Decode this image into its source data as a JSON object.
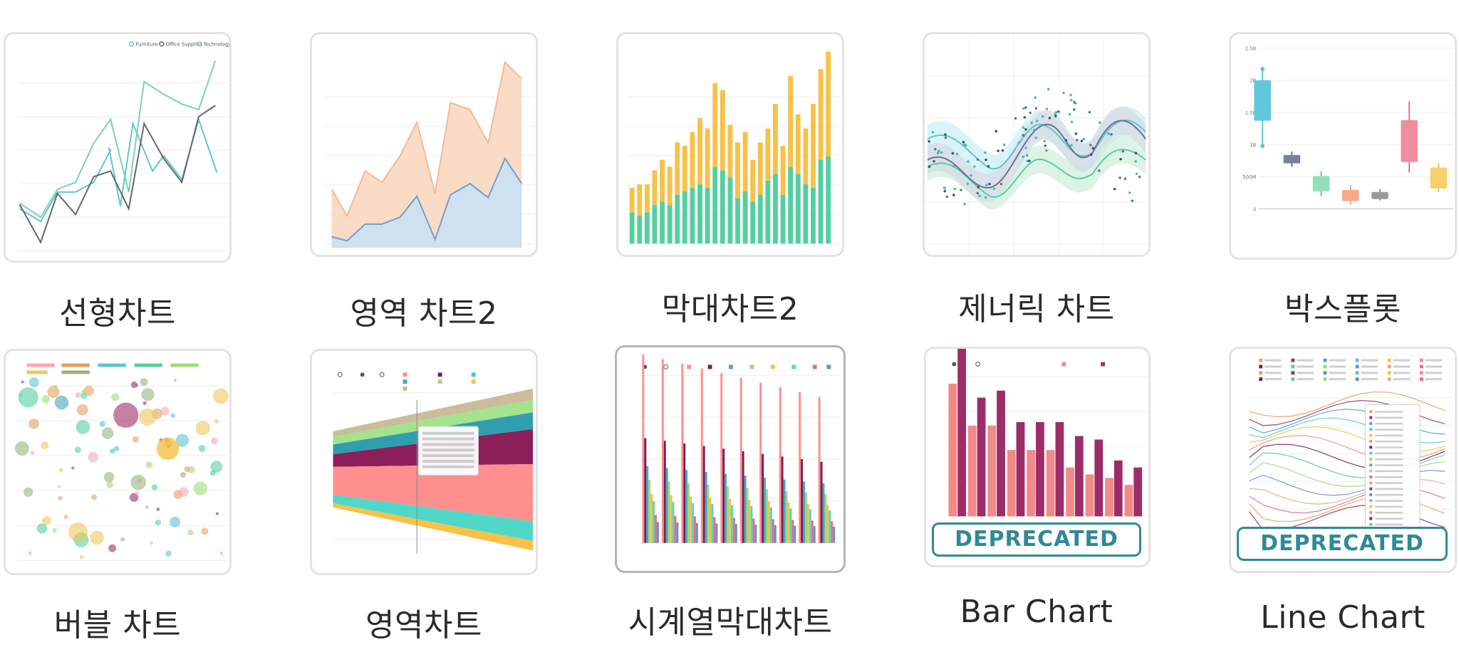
{
  "gallery": {
    "items": [
      {
        "id": "line",
        "label": "선형차트",
        "legend": [
          "Furniture",
          "Office Supplies",
          "Technology"
        ]
      },
      {
        "id": "area2",
        "label": "영역 차트2"
      },
      {
        "id": "bar2",
        "label": "막대차트2"
      },
      {
        "id": "generic",
        "label": "제너릭 차트"
      },
      {
        "id": "boxplot",
        "label": "박스플롯",
        "y_ticks": [
          "2.5B",
          "2B",
          "1.5B",
          "1B",
          "500M",
          "0"
        ]
      },
      {
        "id": "bubble",
        "label": "버블 차트"
      },
      {
        "id": "area",
        "label": "영역차트"
      },
      {
        "id": "ts_bar",
        "label": "시계열막대차트"
      },
      {
        "id": "bar_chart",
        "label": "Bar Chart",
        "badge": "DEPRECATED",
        "deprecated": true
      },
      {
        "id": "line_chart",
        "label": "Line Chart",
        "badge": "DEPRECATED",
        "deprecated": true
      }
    ]
  },
  "colors": {
    "teal": "#5ec5cf",
    "gray": "#666666",
    "sea": "#7ccfb9",
    "peach": "#f6b88f",
    "blue": "#6f9fcf",
    "gold": "#f7c14a",
    "green": "#55cf9f",
    "badge": "#2e8a97",
    "card_border": "#e3e3e3"
  }
}
